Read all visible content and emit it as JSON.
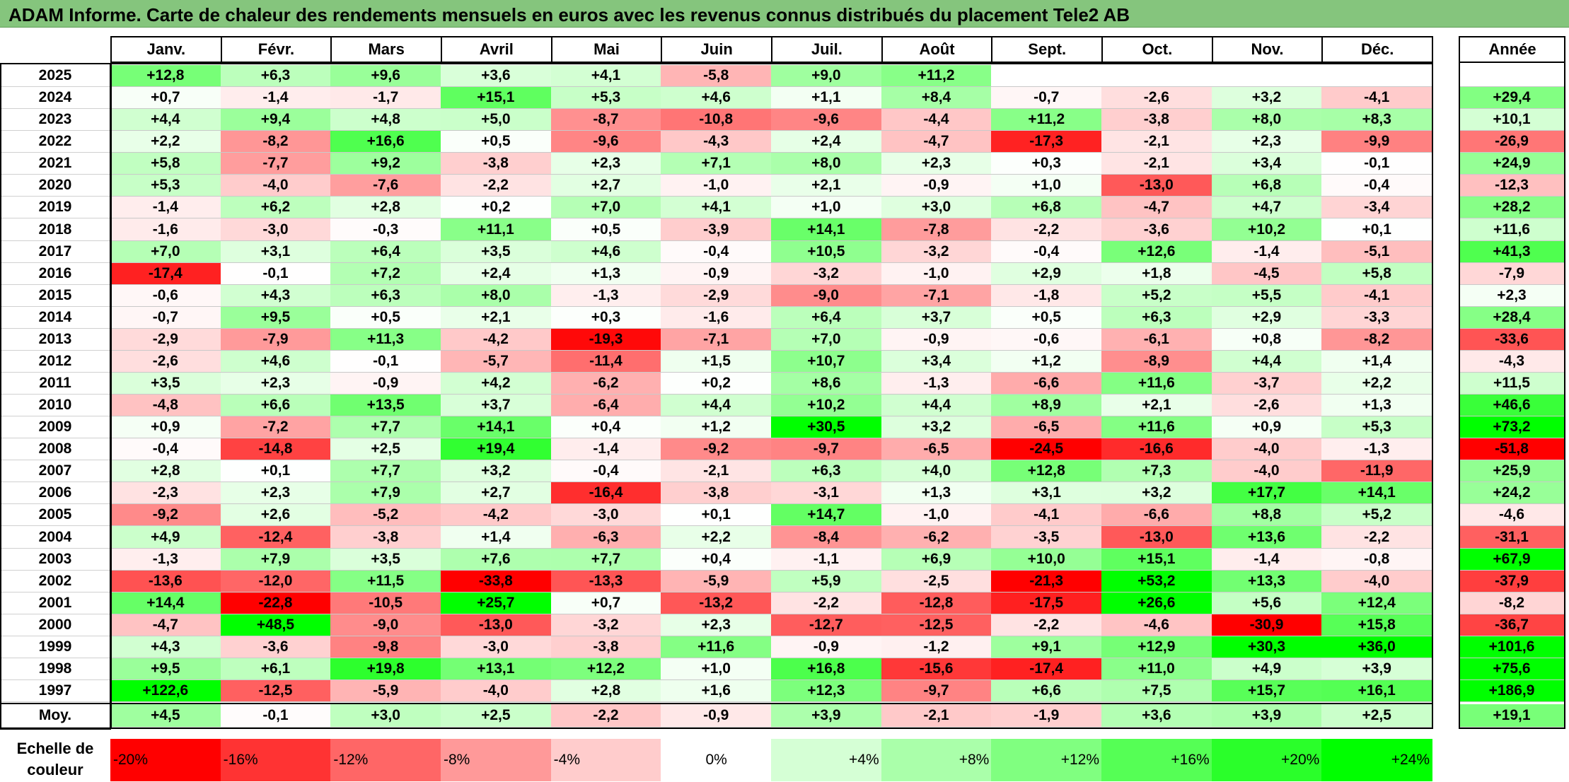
{
  "title": "ADAM Informe. Carte de chaleur des rendements mensuels en euros avec les revenus connus distribués du placement Tele2 AB",
  "chart_data": {
    "type": "heatmap",
    "columns": [
      "Janv.",
      "Févr.",
      "Mars",
      "Avril",
      "Mai",
      "Juin",
      "Juil.",
      "Août",
      "Sept.",
      "Oct.",
      "Nov.",
      "Déc."
    ],
    "year_column": "Année",
    "rows": [
      {
        "label": "2025",
        "values": [
          "+12,8",
          "+6,3",
          "+9,6",
          "+3,6",
          "+4,1",
          "-5,8",
          "+9,0",
          "+11,2",
          "",
          "",
          "",
          ""
        ],
        "year": ""
      },
      {
        "label": "2024",
        "values": [
          "+0,7",
          "-1,4",
          "-1,7",
          "+15,1",
          "+5,3",
          "+4,6",
          "+1,1",
          "+8,4",
          "-0,7",
          "-2,6",
          "+3,2",
          "-4,1"
        ],
        "year": "+29,4"
      },
      {
        "label": "2023",
        "values": [
          "+4,4",
          "+9,4",
          "+4,8",
          "+5,0",
          "-8,7",
          "-10,8",
          "-9,6",
          "-4,4",
          "+11,2",
          "-3,8",
          "+8,0",
          "+8,3"
        ],
        "year": "+10,1"
      },
      {
        "label": "2022",
        "values": [
          "+2,2",
          "-8,2",
          "+16,6",
          "+0,5",
          "-9,6",
          "-4,3",
          "+2,4",
          "-4,7",
          "-17,3",
          "-2,1",
          "+2,3",
          "-9,9"
        ],
        "year": "-26,9"
      },
      {
        "label": "2021",
        "values": [
          "+5,8",
          "-7,7",
          "+9,2",
          "-3,8",
          "+2,3",
          "+7,1",
          "+8,0",
          "+2,3",
          "+0,3",
          "-2,1",
          "+3,4",
          "-0,1"
        ],
        "year": "+24,9"
      },
      {
        "label": "2020",
        "values": [
          "+5,3",
          "-4,0",
          "-7,6",
          "-2,2",
          "+2,7",
          "-1,0",
          "+2,1",
          "-0,9",
          "+1,0",
          "-13,0",
          "+6,8",
          "-0,4"
        ],
        "year": "-12,3"
      },
      {
        "label": "2019",
        "values": [
          "-1,4",
          "+6,2",
          "+2,8",
          "+0,2",
          "+7,0",
          "+4,1",
          "+1,0",
          "+3,0",
          "+6,8",
          "-4,7",
          "+4,7",
          "-3,4"
        ],
        "year": "+28,2"
      },
      {
        "label": "2018",
        "values": [
          "-1,6",
          "-3,0",
          "-0,3",
          "+11,1",
          "+0,5",
          "-3,9",
          "+14,1",
          "-7,8",
          "-2,2",
          "-3,6",
          "+10,2",
          "+0,1"
        ],
        "year": "+11,6"
      },
      {
        "label": "2017",
        "values": [
          "+7,0",
          "+3,1",
          "+6,4",
          "+3,5",
          "+4,6",
          "-0,4",
          "+10,5",
          "-3,2",
          "-0,4",
          "+12,6",
          "-1,4",
          "-5,1"
        ],
        "year": "+41,3"
      },
      {
        "label": "2016",
        "values": [
          "-17,4",
          "-0,1",
          "+7,2",
          "+2,4",
          "+1,3",
          "-0,9",
          "-3,2",
          "-1,0",
          "+2,9",
          "+1,8",
          "-4,5",
          "+5,8"
        ],
        "year": "-7,9"
      },
      {
        "label": "2015",
        "values": [
          "-0,6",
          "+4,3",
          "+6,3",
          "+8,0",
          "-1,3",
          "-2,9",
          "-9,0",
          "-7,1",
          "-1,8",
          "+5,2",
          "+5,5",
          "-4,1"
        ],
        "year": "+2,3"
      },
      {
        "label": "2014",
        "values": [
          "-0,7",
          "+9,5",
          "+0,5",
          "+2,1",
          "+0,3",
          "-1,6",
          "+6,4",
          "+3,7",
          "+0,5",
          "+6,3",
          "+2,9",
          "-3,3"
        ],
        "year": "+28,4"
      },
      {
        "label": "2013",
        "values": [
          "-2,9",
          "-7,9",
          "+11,3",
          "-4,2",
          "-19,3",
          "-7,1",
          "+7,0",
          "-0,9",
          "-0,6",
          "-6,1",
          "+0,8",
          "-8,2"
        ],
        "year": "-33,6"
      },
      {
        "label": "2012",
        "values": [
          "-2,6",
          "+4,6",
          "-0,1",
          "-5,7",
          "-11,4",
          "+1,5",
          "+10,7",
          "+3,4",
          "+1,2",
          "-8,9",
          "+4,4",
          "+1,4"
        ],
        "year": "-4,3"
      },
      {
        "label": "2011",
        "values": [
          "+3,5",
          "+2,3",
          "-0,9",
          "+4,2",
          "-6,2",
          "+0,2",
          "+8,6",
          "-1,3",
          "-6,6",
          "+11,6",
          "-3,7",
          "+2,2"
        ],
        "year": "+11,5"
      },
      {
        "label": "2010",
        "values": [
          "-4,8",
          "+6,6",
          "+13,5",
          "+3,7",
          "-6,4",
          "+4,4",
          "+10,2",
          "+4,4",
          "+8,9",
          "+2,1",
          "-2,6",
          "+1,3"
        ],
        "year": "+46,6"
      },
      {
        "label": "2009",
        "values": [
          "+0,9",
          "-7,2",
          "+7,7",
          "+14,1",
          "+0,4",
          "+1,2",
          "+30,5",
          "+3,2",
          "-6,5",
          "+11,6",
          "+0,9",
          "+5,3"
        ],
        "year": "+73,2"
      },
      {
        "label": "2008",
        "values": [
          "-0,4",
          "-14,8",
          "+2,5",
          "+19,4",
          "-1,4",
          "-9,2",
          "-9,7",
          "-6,5",
          "-24,5",
          "-16,6",
          "-4,0",
          "-1,3"
        ],
        "year": "-51,8"
      },
      {
        "label": "2007",
        "values": [
          "+2,8",
          "+0,1",
          "+7,7",
          "+3,2",
          "-0,4",
          "-2,1",
          "+6,3",
          "+4,0",
          "+12,8",
          "+7,3",
          "-4,0",
          "-11,9"
        ],
        "year": "+25,9"
      },
      {
        "label": "2006",
        "values": [
          "-2,3",
          "+2,3",
          "+7,9",
          "+2,7",
          "-16,4",
          "-3,8",
          "-3,1",
          "+1,3",
          "+3,1",
          "+3,2",
          "+17,7",
          "+14,1"
        ],
        "year": "+24,2"
      },
      {
        "label": "2005",
        "values": [
          "-9,2",
          "+2,6",
          "-5,2",
          "-4,2",
          "-3,0",
          "+0,1",
          "+14,7",
          "-1,0",
          "-4,1",
          "-6,6",
          "+8,8",
          "+5,2"
        ],
        "year": "-4,6"
      },
      {
        "label": "2004",
        "values": [
          "+4,9",
          "-12,4",
          "-3,8",
          "+1,4",
          "-6,3",
          "+2,2",
          "-8,4",
          "-6,2",
          "-3,5",
          "-13,0",
          "+13,6",
          "-2,2"
        ],
        "year": "-31,1"
      },
      {
        "label": "2003",
        "values": [
          "-1,3",
          "+7,9",
          "+3,5",
          "+7,6",
          "+7,7",
          "+0,4",
          "-1,1",
          "+6,9",
          "+10,0",
          "+15,1",
          "-1,4",
          "-0,8"
        ],
        "year": "+67,9"
      },
      {
        "label": "2002",
        "values": [
          "-13,6",
          "-12,0",
          "+11,5",
          "-33,8",
          "-13,3",
          "-5,9",
          "+5,9",
          "-2,5",
          "-21,3",
          "+53,2",
          "+13,3",
          "-4,0"
        ],
        "year": "-37,9"
      },
      {
        "label": "2001",
        "values": [
          "+14,4",
          "-22,8",
          "-10,5",
          "+25,7",
          "+0,7",
          "-13,2",
          "-2,2",
          "-12,8",
          "-17,5",
          "+26,6",
          "+5,6",
          "+12,4"
        ],
        "year": "-8,2"
      },
      {
        "label": "2000",
        "values": [
          "-4,7",
          "+48,5",
          "-9,0",
          "-13,0",
          "-3,2",
          "+2,3",
          "-12,7",
          "-12,5",
          "-2,2",
          "-4,6",
          "-30,9",
          "+15,8"
        ],
        "year": "-36,7"
      },
      {
        "label": "1999",
        "values": [
          "+4,3",
          "-3,6",
          "-9,8",
          "-3,0",
          "-3,8",
          "+11,6",
          "-0,9",
          "-1,2",
          "+9,1",
          "+12,9",
          "+30,3",
          "+36,0"
        ],
        "year": "+101,6"
      },
      {
        "label": "1998",
        "values": [
          "+9,5",
          "+6,1",
          "+19,8",
          "+13,1",
          "+12,2",
          "+1,0",
          "+16,8",
          "-15,6",
          "-17,4",
          "+11,0",
          "+4,9",
          "+3,9"
        ],
        "year": "+75,6"
      },
      {
        "label": "1997",
        "values": [
          "+122,6",
          "-12,5",
          "-5,9",
          "-4,0",
          "+2,8",
          "+1,6",
          "+12,3",
          "-9,7",
          "+6,6",
          "+7,5",
          "+15,7",
          "+16,1"
        ],
        "year": "+186,9"
      }
    ],
    "average": {
      "label": "Moy.",
      "values": [
        "+4,5",
        "-0,1",
        "+3,0",
        "+2,5",
        "-2,2",
        "-0,9",
        "+3,9",
        "-2,1",
        "-1,9",
        "+3,6",
        "+3,9",
        "+2,5"
      ],
      "year": "+19,1"
    },
    "scale": {
      "label_line1": "Echelle de",
      "label_line2": "couleur",
      "stops": [
        "-20%",
        "-16%",
        "-12%",
        "-8%",
        "-4%",
        "0%",
        "+4%",
        "+8%",
        "+12%",
        "+16%",
        "+20%",
        "+24%"
      ],
      "stop_values": [
        -20,
        -16,
        -12,
        -8,
        -4,
        0,
        4,
        8,
        12,
        16,
        20,
        24
      ]
    },
    "colors": {
      "negative": "#ff0000",
      "positive": "#00ff00",
      "neutral": "#ffffff",
      "title_bar": "#85c57d"
    }
  }
}
